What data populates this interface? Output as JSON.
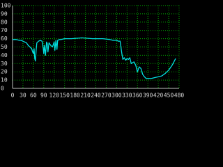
{
  "chart_data": {
    "type": "line",
    "x": [
      0,
      10,
      20,
      25,
      30,
      35,
      40,
      45,
      50,
      55,
      58,
      60,
      62,
      64,
      66,
      68,
      70,
      75,
      80,
      85,
      88,
      90,
      92,
      95,
      98,
      100,
      102,
      105,
      110,
      115,
      120,
      122,
      125,
      128,
      130,
      135,
      140,
      150,
      170,
      200,
      230,
      260,
      280,
      290,
      300,
      305,
      310,
      315,
      318,
      322,
      326,
      330,
      334,
      338,
      342,
      346,
      350,
      355,
      360,
      365,
      370,
      375,
      380,
      385,
      390,
      400,
      410,
      420,
      430,
      440,
      450,
      460,
      470
    ],
    "series": [
      {
        "color": "#00e0e0",
        "values": [
          59,
          59,
          58,
          58,
          57,
          56,
          55,
          52,
          50,
          48,
          44,
          42,
          48,
          36,
          33,
          46,
          55,
          57,
          58,
          57,
          50,
          42,
          52,
          40,
          56,
          54,
          44,
          55,
          52,
          50,
          56,
          46,
          58,
          47,
          58,
          59,
          59,
          60,
          60,
          61,
          60,
          60,
          59,
          58,
          58,
          57,
          57,
          42,
          35,
          37,
          34,
          36,
          35,
          37,
          30,
          31,
          32,
          28,
          20,
          26,
          24,
          17,
          14,
          12,
          12,
          12,
          13,
          14,
          15,
          18,
          22,
          28,
          36
        ]
      }
    ],
    "xlim": [
      0,
      480
    ],
    "xticks": [
      0,
      30,
      60,
      90,
      120,
      150,
      180,
      210,
      240,
      270,
      300,
      330,
      360,
      390,
      420,
      450,
      480
    ],
    "ylim": [
      0,
      100
    ],
    "yticks": [
      0,
      10,
      20,
      30,
      40,
      50,
      60,
      70,
      80,
      90,
      100
    ],
    "grid": true
  }
}
